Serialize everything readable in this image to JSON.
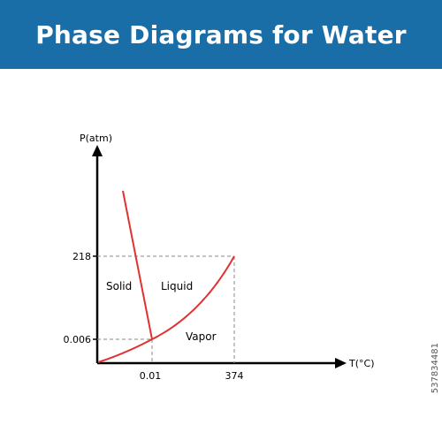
{
  "header": {
    "title": "Phase Diagrams for Water",
    "background": "#1a6ea8"
  },
  "diagram": {
    "y_axis_label": "P(atm)",
    "x_axis_label": "T(°C)",
    "y_ticks": [
      "218",
      "0.006"
    ],
    "x_ticks": [
      "0.01",
      "374"
    ],
    "regions": {
      "solid": "Solid",
      "liquid": "Liquid",
      "vapor": "Vapor"
    },
    "curve_color": "#e0322f",
    "guide_color": "#8a8a8a"
  },
  "stock_id": "537834481"
}
